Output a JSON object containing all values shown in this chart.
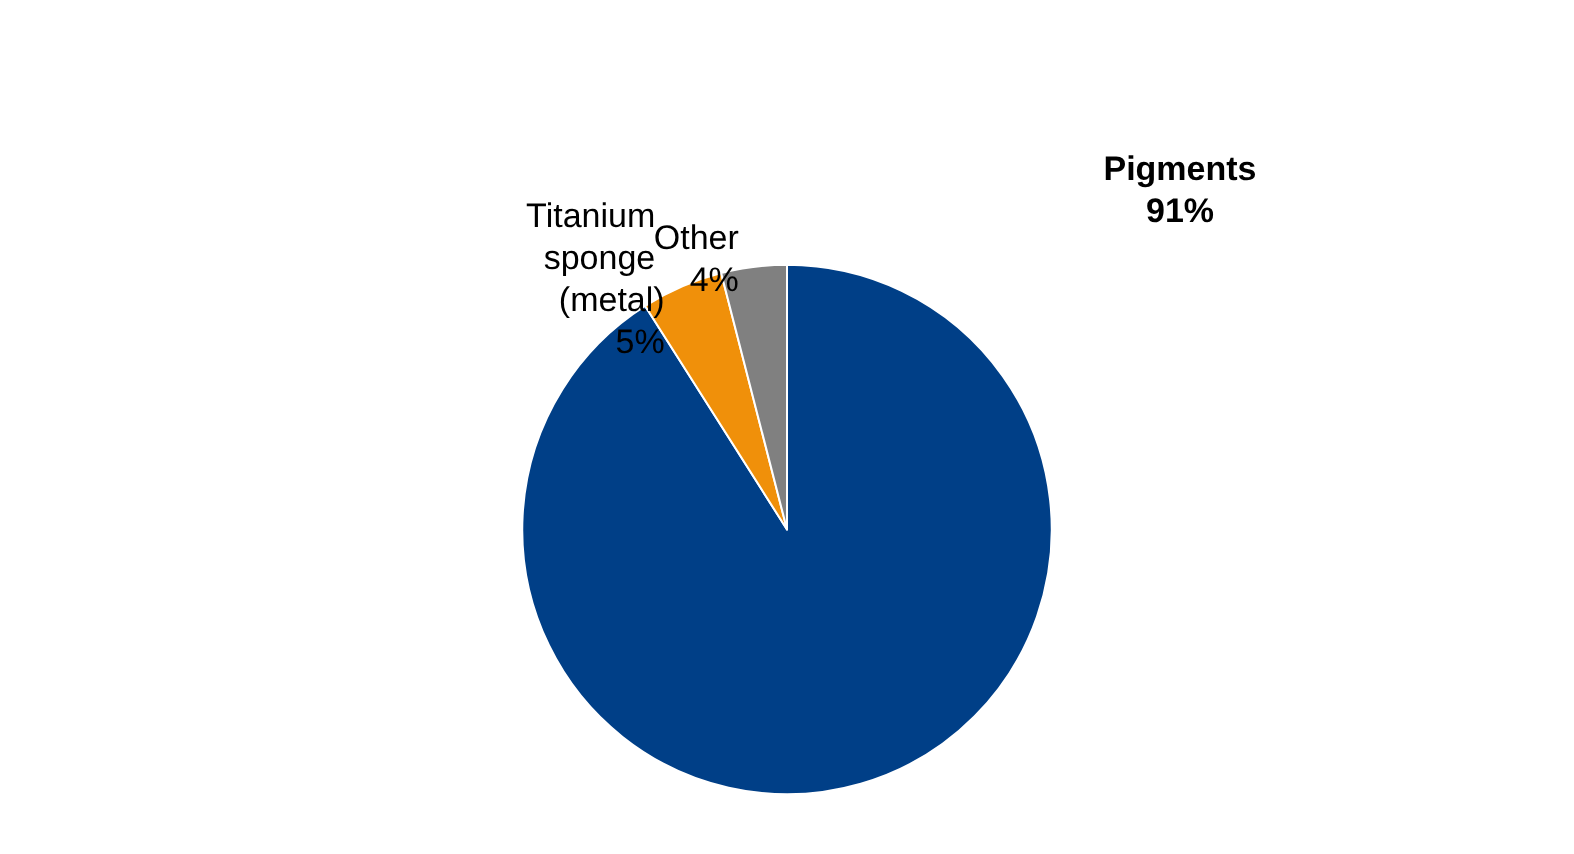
{
  "chart_data": {
    "type": "pie",
    "categories": [
      "Pigments",
      "Titanium sponge (metal)",
      "Other"
    ],
    "values": [
      91,
      5,
      4
    ],
    "value_labels": [
      "91%",
      "5%",
      "4%"
    ],
    "colors": [
      "#003f87",
      "#f0900a",
      "#808080"
    ],
    "legend": false
  }
}
